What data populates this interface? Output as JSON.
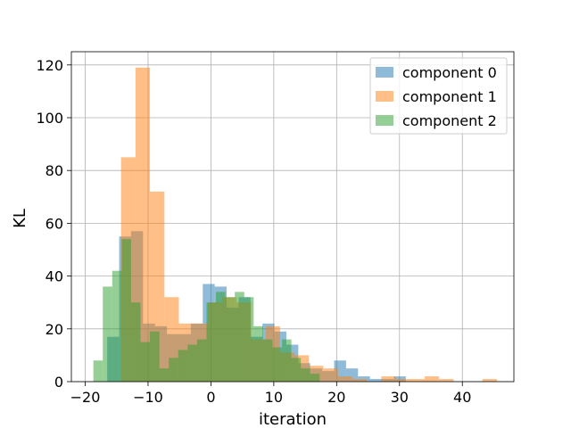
{
  "chart_data": {
    "type": "histogram",
    "title": "",
    "xlabel": "iteration",
    "ylabel": "KL",
    "xlim": [
      -22.2,
      48.2
    ],
    "ylim": [
      0,
      125
    ],
    "xticks": [
      -20,
      -10,
      0,
      10,
      20,
      30,
      40
    ],
    "yticks": [
      0,
      20,
      40,
      60,
      80,
      100,
      120
    ],
    "grid": true,
    "legend_position": "upper right",
    "series": [
      {
        "name": "component 0",
        "color": "#1f77b4",
        "bins": [
          [
            -16.5,
            -14.6,
            17
          ],
          [
            -14.6,
            -12.7,
            55
          ],
          [
            -12.7,
            -10.8,
            57
          ],
          [
            -10.8,
            -8.9,
            22
          ],
          [
            -8.9,
            -7.0,
            21
          ],
          [
            -7.0,
            -5.1,
            18
          ],
          [
            -5.1,
            -3.2,
            18
          ],
          [
            -3.2,
            -1.3,
            22
          ],
          [
            -1.3,
            0.6,
            37
          ],
          [
            0.6,
            2.5,
            36
          ],
          [
            2.5,
            4.4,
            28
          ],
          [
            4.4,
            6.3,
            32
          ],
          [
            6.3,
            8.2,
            17
          ],
          [
            8.2,
            10.1,
            22
          ],
          [
            10.1,
            12.0,
            19
          ],
          [
            12.0,
            13.9,
            14
          ],
          [
            13.9,
            15.8,
            7
          ],
          [
            15.8,
            17.7,
            5
          ],
          [
            17.7,
            19.6,
            4
          ],
          [
            19.6,
            21.5,
            8
          ],
          [
            21.5,
            23.4,
            5
          ],
          [
            23.4,
            25.3,
            2
          ],
          [
            25.3,
            27.2,
            1
          ],
          [
            27.2,
            29.1,
            1
          ],
          [
            29.1,
            31.0,
            2
          ]
        ]
      },
      {
        "name": "component 1",
        "color": "#ff7f0e",
        "bins": [
          [
            -14.3,
            -12.0,
            85
          ],
          [
            -12.0,
            -9.7,
            119
          ],
          [
            -9.7,
            -7.4,
            72
          ],
          [
            -7.4,
            -5.1,
            32
          ],
          [
            -5.1,
            -2.8,
            22
          ],
          [
            -2.8,
            -0.5,
            22
          ],
          [
            -0.5,
            1.8,
            30
          ],
          [
            1.8,
            4.1,
            32
          ],
          [
            4.1,
            6.4,
            30
          ],
          [
            6.4,
            8.7,
            16
          ],
          [
            8.7,
            11.0,
            21
          ],
          [
            11.0,
            13.3,
            11
          ],
          [
            13.3,
            15.6,
            10
          ],
          [
            15.6,
            17.9,
            6
          ],
          [
            17.9,
            20.2,
            5
          ],
          [
            20.2,
            22.5,
            2
          ],
          [
            22.5,
            24.8,
            1
          ],
          [
            24.8,
            27.1,
            0
          ],
          [
            27.1,
            29.4,
            2
          ],
          [
            29.4,
            31.7,
            1
          ],
          [
            31.7,
            34.0,
            1
          ],
          [
            34.0,
            36.3,
            2
          ],
          [
            36.3,
            38.6,
            1
          ],
          [
            38.6,
            40.9,
            0
          ],
          [
            40.9,
            43.2,
            0
          ],
          [
            43.2,
            45.5,
            1
          ]
        ]
      },
      {
        "name": "component 2",
        "color": "#2ca02c",
        "bins": [
          [
            -18.7,
            -17.2,
            8
          ],
          [
            -17.2,
            -15.7,
            36
          ],
          [
            -15.7,
            -14.2,
            42
          ],
          [
            -14.2,
            -12.7,
            54
          ],
          [
            -12.7,
            -11.2,
            30
          ],
          [
            -11.2,
            -9.7,
            15
          ],
          [
            -9.7,
            -8.2,
            19
          ],
          [
            -8.2,
            -6.7,
            5
          ],
          [
            -6.7,
            -5.2,
            9
          ],
          [
            -5.2,
            -3.7,
            12
          ],
          [
            -3.7,
            -2.2,
            14
          ],
          [
            -2.2,
            -0.7,
            16
          ],
          [
            -0.7,
            0.8,
            30
          ],
          [
            0.8,
            2.3,
            34
          ],
          [
            2.3,
            3.8,
            32
          ],
          [
            3.8,
            5.3,
            34
          ],
          [
            5.3,
            6.8,
            32
          ],
          [
            6.8,
            8.3,
            21
          ],
          [
            8.3,
            9.8,
            16
          ],
          [
            9.8,
            11.3,
            13
          ],
          [
            11.3,
            12.8,
            16
          ],
          [
            12.8,
            14.3,
            9
          ],
          [
            14.3,
            15.8,
            5
          ],
          [
            15.8,
            17.3,
            3
          ]
        ]
      }
    ]
  }
}
